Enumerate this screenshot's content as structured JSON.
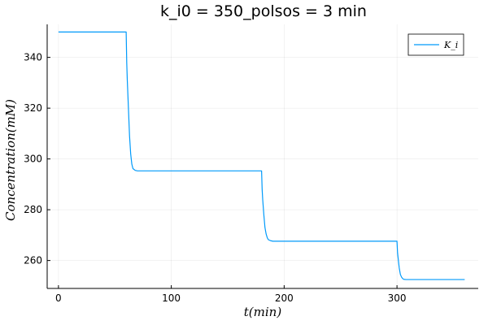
{
  "chart_data": {
    "type": "line",
    "title": "k_i0 = 350_polsos = 3 min",
    "xlabel": "t(min)",
    "ylabel": "Concentration(mM)",
    "xlim": [
      -10,
      372
    ],
    "ylim": [
      249,
      353
    ],
    "xticks": [
      0,
      100,
      200,
      300
    ],
    "yticks": [
      260,
      280,
      300,
      320,
      340
    ],
    "grid": true,
    "legend_position": "top-right",
    "series": [
      {
        "name": "K_i",
        "color": "#009AFA",
        "x": [
          0,
          60,
          60.5,
          61,
          62,
          63,
          64,
          65,
          66,
          68,
          70,
          180,
          180.5,
          181,
          182,
          183,
          184,
          185,
          186,
          188,
          190,
          300,
          300.5,
          301,
          302,
          303,
          304,
          305,
          306,
          308,
          310,
          360
        ],
        "y": [
          350,
          350,
          338,
          331,
          320,
          309,
          302,
          298,
          296.2,
          295.5,
          295.3,
          295.3,
          288,
          284,
          278,
          273,
          270.5,
          269,
          268.2,
          267.8,
          267.6,
          267.6,
          263,
          261,
          257,
          254.5,
          253.5,
          252.9,
          252.6,
          252.5,
          252.5,
          252.5
        ]
      }
    ]
  }
}
